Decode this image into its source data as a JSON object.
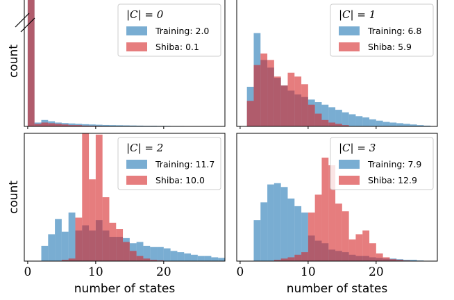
{
  "colors": {
    "training": "#1f77b4",
    "shiba": "#d62728"
  },
  "chart_data": {
    "type": "bar",
    "xlabel": "number of states",
    "ylabel": "count",
    "xlim": [
      -0.5,
      29
    ],
    "xticks": [
      0,
      10,
      20
    ],
    "bin_width": 1,
    "panels": [
      {
        "title": "|C| = 0",
        "ylim": [
          0,
          100
        ],
        "axis_break": true,
        "series": [
          {
            "name": "Training",
            "mean_label": "Training: 2.0",
            "x_start": 0,
            "values": [
              100,
              3,
              5,
              4,
              3,
              2.6,
              2.3,
              2,
              1.7,
              1.5,
              1.3,
              1.1,
              1,
              0.9,
              0.8,
              0.7,
              0.6,
              0.5,
              0.5,
              0.4,
              0.4,
              0.3,
              0.3,
              0.2,
              0.2,
              0.2,
              0.1,
              0.1
            ]
          },
          {
            "name": "Shiba",
            "mean_label": "Shiba: 0.1",
            "x_start": 0,
            "values": [
              100,
              2,
              3,
              2.5,
              2,
              1.5,
              1,
              1,
              0.6,
              0.5,
              0.4,
              0.3,
              0.2,
              0.2,
              0.1
            ]
          }
        ]
      },
      {
        "title": "|C| = 1",
        "ylim": [
          0,
          100
        ],
        "series": [
          {
            "name": "Training",
            "mean_label": "Training: 6.8",
            "x_start": 0,
            "values": [
              0,
              31,
              73,
              52,
              46,
              38,
              32,
              28,
              25,
              23,
              21,
              19,
              17,
              15,
              13,
              11,
              9.5,
              8,
              7,
              5.5,
              4.5,
              3.5,
              3,
              2.5,
              2,
              1.5,
              1,
              0.6
            ]
          },
          {
            "name": "Shiba",
            "mean_label": "Shiba: 5.9",
            "x_start": 0,
            "values": [
              0,
              20,
              48,
              57,
              52,
              39,
              32,
              42,
              39,
              33,
              17,
              10,
              5,
              3,
              2,
              1
            ]
          }
        ]
      },
      {
        "title": "|C| = 2",
        "ylim": [
          0,
          100
        ],
        "series": [
          {
            "name": "Training",
            "mean_label": "Training: 11.7",
            "x_start": 0,
            "values": [
              0,
              0,
              12,
              21,
              33,
              23,
              38,
              24,
              28,
              24,
              32,
              24,
              19,
              19,
              18,
              14,
              15,
              12,
              11,
              11,
              10,
              8,
              7,
              6,
              5,
              4,
              4,
              3,
              2.5
            ]
          },
          {
            "name": "Shiba",
            "mean_label": "Shiba: 10.0",
            "x_start": 0,
            "values": [
              0,
              0,
              0,
              0,
              0,
              1,
              2,
              34,
              100,
              64,
              99,
              50,
              30,
              25,
              15,
              8,
              4,
              2,
              1,
              0.6
            ]
          }
        ]
      },
      {
        "title": "|C| = 3",
        "ylim": [
          0,
          100
        ],
        "series": [
          {
            "name": "Training",
            "mean_label": "Training: 7.9",
            "x_start": 0,
            "values": [
              0,
              0,
              32,
              46,
              60,
              61,
              58,
              49,
              43,
              38,
              20,
              16,
              14,
              9,
              8,
              7,
              5,
              4,
              4,
              3,
              2.5,
              2,
              2,
              1.5,
              1,
              1,
              0.5
            ]
          },
          {
            "name": "Shiba",
            "mean_label": "Shiba: 12.9",
            "x_start": 0,
            "values": [
              0,
              0,
              0,
              0,
              0,
              1,
              2,
              3,
              5,
              7,
              38,
              52,
              81,
              75,
              45,
              39,
              17,
              21,
              24,
              14,
              6,
              3,
              1.5,
              1,
              0.5
            ]
          }
        ]
      }
    ]
  }
}
